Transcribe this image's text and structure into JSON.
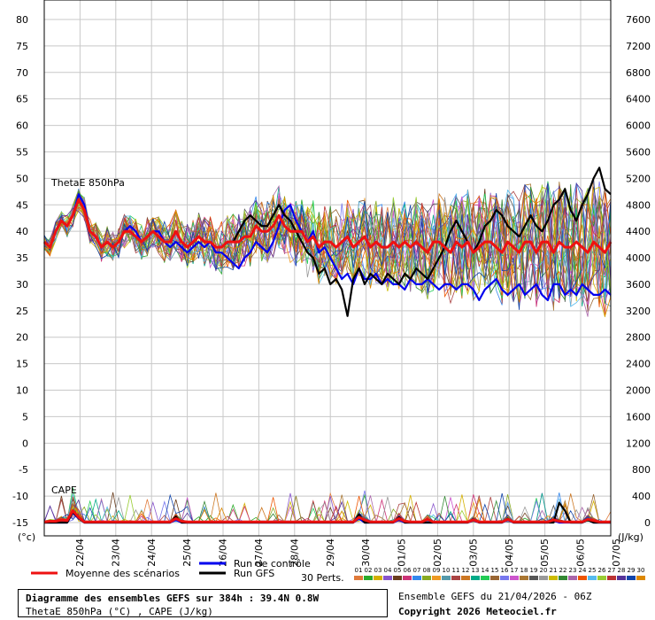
{
  "chart_data": {
    "type": "line",
    "title": "Diagramme des ensembles GEFS sur 384h : 39.4N 0.8W",
    "subtitle": "ThetaE 850hPa (°C) , CAPE (J/kg)",
    "panel_labels": [
      "ThetaE 850hPa",
      "CAPE"
    ],
    "ylabel_left": "(°c)",
    "ylabel_right": "(J/kg)",
    "left_axis": {
      "ticks": [
        -15,
        -10,
        -5,
        0,
        5,
        10,
        15,
        20,
        25,
        30,
        35,
        40,
        45,
        50,
        55,
        60,
        65,
        70,
        75,
        80
      ],
      "ylim": [
        -15,
        80
      ]
    },
    "right_axis": {
      "ticks": [
        0,
        400,
        800,
        1200,
        1600,
        2000,
        2400,
        2800,
        3200,
        3600,
        4000,
        4400,
        4800,
        5200,
        5600,
        6000,
        6400,
        6800,
        7200,
        7600
      ],
      "ylim": [
        0,
        7600
      ]
    },
    "x_ticks": [
      "22/04",
      "23/04",
      "24/04",
      "25/04",
      "26/04",
      "27/04",
      "28/04",
      "29/04",
      "30/04",
      "01/05",
      "02/05",
      "03/05",
      "04/05",
      "05/05",
      "06/05",
      "07/05"
    ],
    "grid": true,
    "series": [
      {
        "name": "Moyenne des scénarios",
        "color": "#ee1111",
        "panel": "ThetaE 850hPa",
        "values": [
          38,
          37,
          40,
          42,
          41,
          43,
          46,
          44,
          40,
          39,
          37,
          38,
          37,
          38,
          40,
          40,
          39,
          38,
          39,
          40,
          39,
          38,
          38,
          40,
          38,
          37,
          38,
          39,
          38,
          38,
          37,
          37,
          38,
          38,
          38,
          39,
          39,
          41,
          40,
          40,
          41,
          43,
          41,
          40,
          40,
          40,
          38,
          39,
          37,
          38,
          38,
          37,
          38,
          39,
          37,
          38,
          39,
          37,
          38,
          37,
          37,
          38,
          37,
          38,
          37,
          38,
          37,
          36,
          38,
          38,
          37,
          36,
          38,
          37,
          38,
          36,
          37,
          38,
          38,
          37,
          36,
          38,
          37,
          36,
          38,
          38,
          36,
          38,
          38,
          36,
          38,
          37,
          37,
          38,
          37,
          36,
          38,
          37,
          36,
          38
        ]
      },
      {
        "name": "Run de contrôle",
        "color": "#0000ee",
        "panel": "ThetaE 850hPa",
        "values": [
          38,
          37,
          40,
          42,
          41,
          43,
          47,
          45,
          40,
          39,
          37,
          38,
          37,
          38,
          40,
          41,
          40,
          38,
          39,
          40,
          40,
          38,
          37,
          38,
          37,
          36,
          37,
          38,
          37,
          38,
          36,
          36,
          35,
          34,
          33,
          35,
          36,
          38,
          37,
          36,
          38,
          41,
          44,
          45,
          42,
          40,
          38,
          40,
          36,
          37,
          35,
          33,
          31,
          32,
          30,
          33,
          31,
          31,
          32,
          30,
          31,
          30,
          30,
          29,
          31,
          30,
          30,
          31,
          30,
          29,
          30,
          30,
          29,
          30,
          30,
          29,
          27,
          29,
          30,
          31,
          29,
          28,
          29,
          30,
          28,
          29,
          30,
          28,
          27,
          30,
          30,
          28,
          29,
          28,
          30,
          29,
          28,
          28,
          29,
          28
        ]
      },
      {
        "name": "Run GFS",
        "color": "#000000",
        "panel": "ThetaE 850hPa",
        "values": [
          38,
          37,
          40,
          42,
          41,
          43,
          46,
          44,
          40,
          39,
          37,
          38,
          37,
          38,
          40,
          40,
          39,
          38,
          39,
          40,
          39,
          38,
          38,
          40,
          38,
          37,
          38,
          39,
          38,
          38,
          37,
          37,
          38,
          38,
          40,
          42,
          43,
          42,
          41,
          41,
          43,
          45,
          43,
          42,
          40,
          38,
          36,
          35,
          32,
          33,
          30,
          31,
          29,
          24,
          31,
          33,
          30,
          32,
          31,
          30,
          32,
          31,
          30,
          32,
          31,
          33,
          32,
          31,
          33,
          35,
          37,
          40,
          42,
          40,
          38,
          36,
          38,
          41,
          42,
          44,
          43,
          41,
          40,
          39,
          41,
          43,
          41,
          40,
          42,
          45,
          46,
          48,
          44,
          42,
          45,
          47,
          50,
          52,
          48,
          47
        ]
      },
      {
        "name": "Moyenne des scénarios CAPE",
        "color": "#ee1111",
        "panel": "CAPE",
        "values": [
          10,
          20,
          20,
          40,
          30,
          180,
          80,
          10,
          10,
          10,
          10,
          10,
          10,
          10,
          10,
          10,
          10,
          10,
          10,
          10,
          10,
          10,
          10,
          60,
          20,
          10,
          10,
          10,
          10,
          10,
          10,
          10,
          10,
          10,
          10,
          10,
          10,
          10,
          10,
          10,
          10,
          10,
          10,
          10,
          10,
          10,
          10,
          10,
          10,
          10,
          10,
          10,
          10,
          10,
          10,
          80,
          40,
          10,
          10,
          10,
          10,
          10,
          60,
          20,
          10,
          10,
          10,
          50,
          10,
          10,
          10,
          10,
          10,
          10,
          10,
          40,
          10,
          10,
          10,
          10,
          10,
          50,
          10,
          10,
          10,
          10,
          10,
          10,
          10,
          40,
          20,
          10,
          10,
          10,
          10,
          50,
          30,
          10,
          10,
          10
        ]
      },
      {
        "name": "Run de contrôle CAPE",
        "color": "#0000ee",
        "panel": "CAPE",
        "values": [
          0,
          0,
          0,
          0,
          0,
          150,
          60,
          0,
          0,
          0,
          0,
          0,
          0,
          0,
          0,
          0,
          0,
          0,
          0,
          0,
          0,
          0,
          0,
          40,
          0,
          0,
          0,
          0,
          0,
          0,
          0,
          0,
          0,
          0,
          0,
          0,
          0,
          0,
          0,
          0,
          0,
          0,
          0,
          0,
          0,
          0,
          0,
          0,
          0,
          0,
          0,
          0,
          0,
          0,
          0,
          60,
          0,
          0,
          0,
          0,
          0,
          0,
          40,
          0,
          0,
          0,
          0,
          0,
          0,
          0,
          0,
          0,
          0,
          0,
          0,
          30,
          0,
          0,
          0,
          0,
          0,
          40,
          0,
          0,
          0,
          0,
          0,
          0,
          0,
          30,
          0,
          0,
          0,
          0,
          0,
          40,
          0,
          0,
          0,
          0
        ]
      },
      {
        "name": "Run GFS CAPE",
        "color": "#000000",
        "panel": "CAPE",
        "values": [
          0,
          0,
          0,
          0,
          0,
          160,
          70,
          0,
          0,
          0,
          0,
          0,
          0,
          0,
          0,
          0,
          0,
          0,
          0,
          0,
          0,
          0,
          0,
          90,
          0,
          0,
          0,
          0,
          0,
          0,
          0,
          0,
          0,
          0,
          0,
          0,
          0,
          0,
          0,
          0,
          0,
          0,
          0,
          0,
          0,
          0,
          0,
          0,
          0,
          0,
          0,
          0,
          0,
          0,
          0,
          120,
          0,
          0,
          0,
          0,
          0,
          0,
          80,
          0,
          0,
          0,
          0,
          0,
          0,
          0,
          0,
          0,
          0,
          0,
          0,
          50,
          0,
          0,
          0,
          0,
          0,
          60,
          0,
          0,
          0,
          0,
          0,
          0,
          0,
          0,
          300,
          180,
          0,
          0,
          0,
          40,
          0,
          0,
          0,
          0
        ]
      }
    ],
    "perturbations": {
      "label": "30 Perts.",
      "members": [
        "01",
        "02",
        "03",
        "04",
        "05",
        "06",
        "07",
        "08",
        "09",
        "10",
        "11",
        "12",
        "13",
        "14",
        "15",
        "16",
        "17",
        "18",
        "19",
        "20",
        "21",
        "22",
        "23",
        "24",
        "25",
        "26",
        "27",
        "28",
        "29",
        "30"
      ],
      "colors": [
        "#e07a3a",
        "#2aaa2a",
        "#d4b000",
        "#8855cc",
        "#6b3e1e",
        "#cc3377",
        "#3388ee",
        "#88aa22",
        "#ee9922",
        "#5599aa",
        "#aa4444",
        "#cc7722",
        "#00aa88",
        "#22cc55",
        "#996633",
        "#7777ee",
        "#cc55cc",
        "#aa7733",
        "#555555",
        "#999999",
        "#ccbb00",
        "#338833",
        "#aa66aa",
        "#ee5500",
        "#55bbee",
        "#99cc33",
        "#bb3333",
        "#553399",
        "#1144aa",
        "#dd8800"
      ]
    },
    "legend": {
      "placement": "bottom-left",
      "entries": [
        "Moyenne des scénarios",
        "Run de contrôle",
        "Run GFS"
      ]
    }
  },
  "footer": {
    "title": "Diagramme des ensembles GEFS sur 384h : 39.4N 0.8W",
    "subtitle": "ThetaE 850hPa (°C) , CAPE (J/kg)",
    "ensemble_info": "Ensemble GEFS du 21/04/2026 - 06Z",
    "copyright": "Copyright 2026 Meteociel.fr"
  }
}
